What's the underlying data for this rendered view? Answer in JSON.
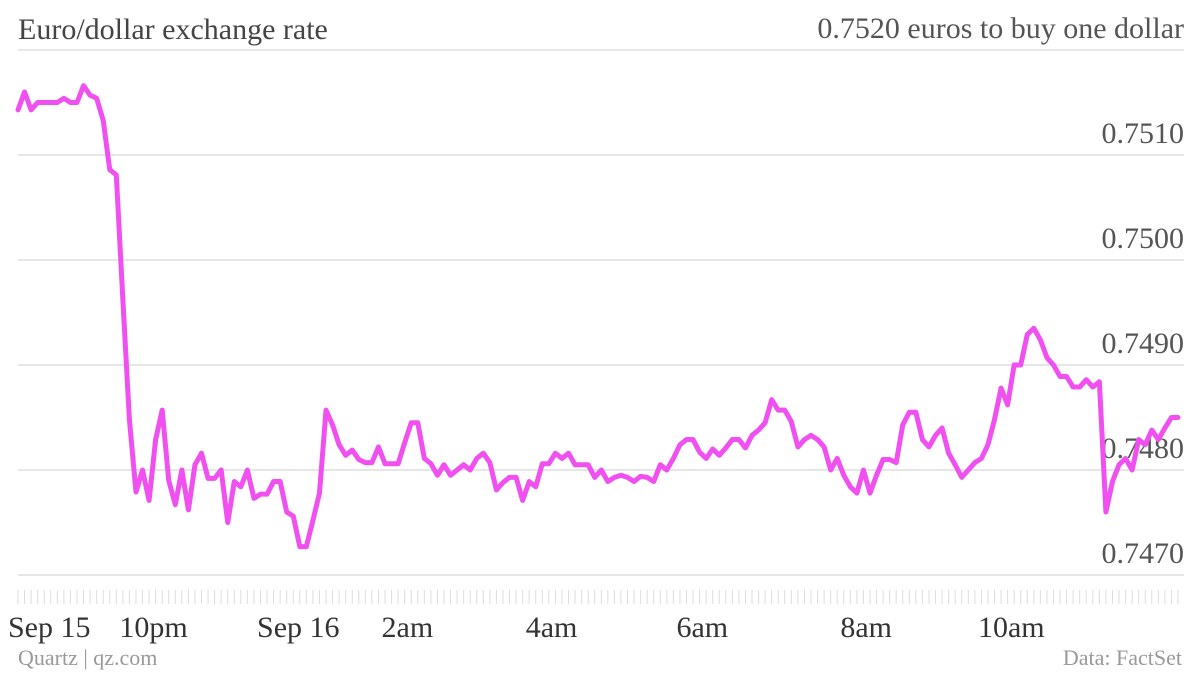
{
  "chart_data": {
    "type": "line",
    "title": "Euro/dollar exchange rate",
    "credit": "Quartz | qz.com",
    "source": "Data: FactSet",
    "color": "#f050f0",
    "grid": true,
    "ylim": [
      0.747,
      0.752
    ],
    "yticks": [
      {
        "value": 0.747,
        "label": "0.7470"
      },
      {
        "value": 0.748,
        "label": "0.7480"
      },
      {
        "value": 0.749,
        "label": "0.7490"
      },
      {
        "value": 0.75,
        "label": "0.7500"
      },
      {
        "value": 0.751,
        "label": "0.7510"
      },
      {
        "value": 0.752,
        "label": "0.7520 euros to buy one dollar"
      }
    ],
    "categories": [
      "Sep 15",
      null,
      null,
      null,
      null,
      null,
      null,
      null,
      null,
      null,
      null,
      null,
      null,
      null,
      null,
      null,
      null,
      "10pm",
      null,
      null,
      null,
      null,
      null,
      null,
      null,
      null,
      null,
      null,
      null,
      null,
      null,
      null,
      null,
      null,
      null,
      null,
      null,
      null,
      "Sep 16",
      null,
      null,
      null,
      null,
      null,
      null,
      null,
      null,
      null,
      null,
      null,
      null,
      null,
      null,
      null,
      null,
      null,
      null,
      "2am",
      null,
      null,
      null,
      null,
      null,
      null,
      null,
      null,
      null,
      null,
      null,
      null,
      null,
      null,
      null,
      null,
      null,
      null,
      null,
      null,
      null,
      "4am",
      null,
      null,
      null,
      null,
      null,
      null,
      null,
      null,
      null,
      null,
      null,
      null,
      null,
      null,
      null,
      null,
      null,
      null,
      null,
      null,
      null,
      null,
      "6am",
      null,
      null,
      null,
      null,
      null,
      null,
      null,
      null,
      null,
      null,
      null,
      null,
      null,
      null,
      null,
      null,
      null,
      null,
      null,
      null,
      null,
      null,
      null,
      null,
      "8am",
      null,
      null,
      null,
      null,
      null,
      null,
      null,
      null,
      null,
      null,
      null,
      null,
      null,
      null,
      null,
      null,
      null,
      null,
      null,
      null,
      "10am",
      null,
      null,
      null,
      null,
      null,
      null,
      null,
      null,
      null,
      null,
      null,
      null,
      null,
      null,
      null,
      null,
      null,
      null,
      null,
      null,
      null,
      null,
      null,
      null,
      null,
      null,
      null,
      null,
      null
    ],
    "values": [
      0.75143,
      0.7516,
      0.75143,
      0.7515,
      0.7515,
      0.7515,
      0.7515,
      0.75154,
      0.7515,
      0.7515,
      0.75166,
      0.75157,
      0.75154,
      0.75133,
      0.75086,
      0.75081,
      0.74962,
      0.74848,
      0.74779,
      0.748,
      0.74771,
      0.74829,
      0.74857,
      0.7479,
      0.74767,
      0.748,
      0.74762,
      0.74805,
      0.74816,
      0.74792,
      0.74792,
      0.748,
      0.7475,
      0.74789,
      0.74784,
      0.748,
      0.74773,
      0.74777,
      0.74777,
      0.74789,
      0.74789,
      0.7476,
      0.74756,
      0.74727,
      0.74727,
      0.74752,
      0.74778,
      0.74857,
      0.74843,
      0.74824,
      0.74814,
      0.74819,
      0.7481,
      0.74807,
      0.74807,
      0.74822,
      0.74806,
      0.74806,
      0.74806,
      0.74826,
      0.74845,
      0.74845,
      0.74811,
      0.74806,
      0.74795,
      0.74805,
      0.74795,
      0.748,
      0.74805,
      0.748,
      0.74811,
      0.74816,
      0.74807,
      0.74781,
      0.74788,
      0.74793,
      0.74793,
      0.74771,
      0.74789,
      0.74784,
      0.74806,
      0.74806,
      0.74816,
      0.74811,
      0.74816,
      0.74805,
      0.74805,
      0.74805,
      0.74793,
      0.748,
      0.74789,
      0.74793,
      0.74795,
      0.74793,
      0.74789,
      0.74794,
      0.74793,
      0.74789,
      0.74805,
      0.748,
      0.74811,
      0.74824,
      0.74829,
      0.74829,
      0.74817,
      0.74811,
      0.7482,
      0.74814,
      0.74821,
      0.74829,
      0.74829,
      0.74821,
      0.74833,
      0.74838,
      0.74845,
      0.74867,
      0.74857,
      0.74857,
      0.74846,
      0.74822,
      0.74829,
      0.74833,
      0.74829,
      0.74822,
      0.748,
      0.74811,
      0.74795,
      0.74784,
      0.74778,
      0.748,
      0.74778,
      0.74795,
      0.7481,
      0.7481,
      0.74807,
      0.74843,
      0.74855,
      0.74855,
      0.74829,
      0.74822,
      0.74833,
      0.7484,
      0.74816,
      0.74805,
      0.74793,
      0.748,
      0.74807,
      0.74811,
      0.74824,
      0.74848,
      0.74878,
      0.74862,
      0.749,
      0.749,
      0.74929,
      0.74935,
      0.74924,
      0.74907,
      0.749,
      0.74889,
      0.74889,
      0.74879,
      0.74879,
      0.74886,
      0.74879,
      0.74884,
      0.7476,
      0.74789,
      0.74805,
      0.74811,
      0.748,
      0.74829,
      0.74824,
      0.74838,
      0.74829,
      0.7484,
      0.7485,
      0.7485
    ]
  }
}
